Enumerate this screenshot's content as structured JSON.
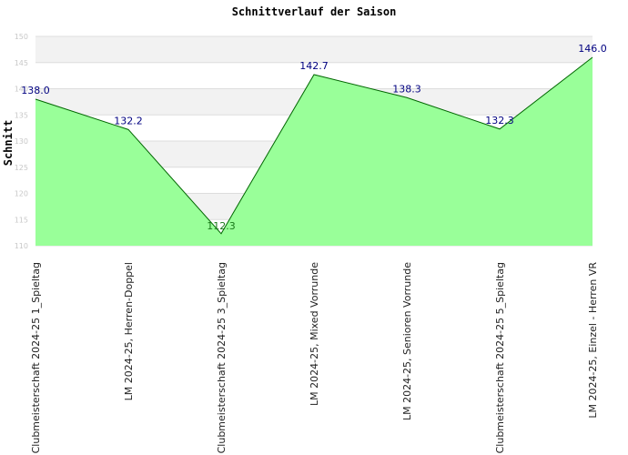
{
  "chart_data": {
    "type": "area",
    "title": "Schnittverlauf der Saison",
    "ylabel": "Schnitt",
    "xlabel": "",
    "categories": [
      "Clubmeisterschaft 2024-25   1_Spieltag",
      "LM 2024-25, Herren-Doppel",
      "Clubmeisterschaft 2024-25   3_Spieltag",
      "LM 2024-25, Mixed Vorrunde",
      "LM 2024-25, Senioren Vorrunde",
      "Clubmeisterschaft 2024-25   5_Spieltag",
      "LM 2024-25, Einzel - Herren VR"
    ],
    "values": [
      138.0,
      132.2,
      112.3,
      142.7,
      138.3,
      132.3,
      146.0
    ],
    "value_labels": [
      "138.0",
      "132.2",
      "112.3",
      "142.7",
      "138.3",
      "132.3",
      "146.0"
    ],
    "ylim": [
      110,
      150
    ],
    "yticks": [
      110,
      115,
      120,
      125,
      130,
      135,
      140,
      145,
      150
    ],
    "grid": true,
    "colors": {
      "fill": "#99ff99",
      "line": "#006600",
      "band_light": "#f2f2f2",
      "band_white": "#ffffff",
      "gridline": "#dddddd",
      "value_label": "#000080"
    }
  }
}
